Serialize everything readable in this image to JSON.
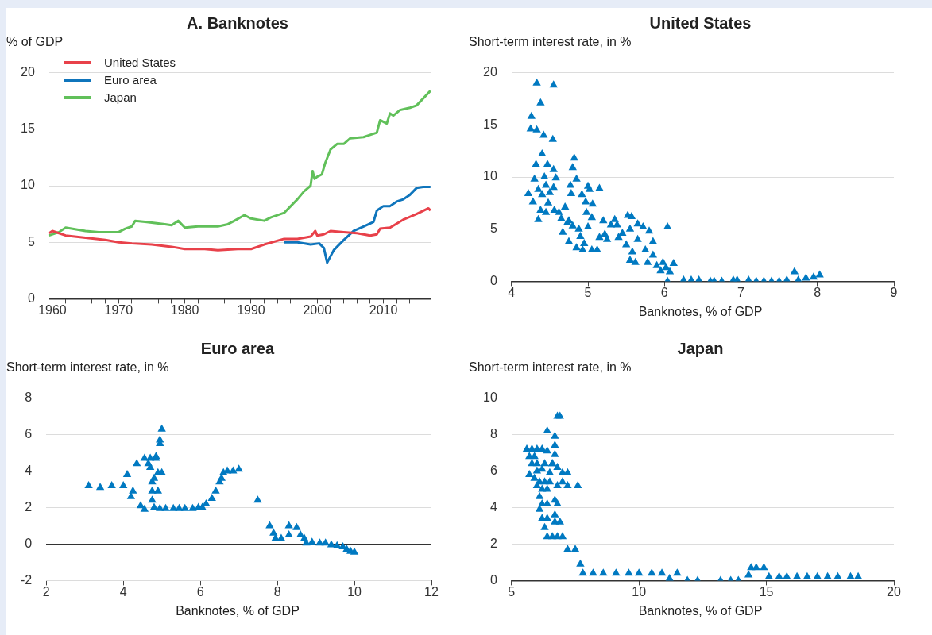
{
  "chart_data": [
    {
      "type": "line",
      "title": "A. Banknotes",
      "ylabel": "% of GDP",
      "xlim": [
        1959.5,
        2017.25
      ],
      "ylim": [
        0,
        20
      ],
      "yticks": [
        0,
        5,
        10,
        15,
        20
      ],
      "xticks": [
        1960,
        {
          "value": 1962,
          "label": null
        },
        {
          "value": 1964,
          "label": null
        },
        {
          "value": 1966,
          "label": null
        },
        {
          "value": 1968,
          "label": null
        },
        1970,
        {
          "value": 1972,
          "label": null
        },
        {
          "value": 1974,
          "label": null
        },
        {
          "value": 1976,
          "label": null
        },
        {
          "value": 1978,
          "label": null
        },
        1980,
        {
          "value": 1982,
          "label": null
        },
        {
          "value": 1984,
          "label": null
        },
        {
          "value": 1986,
          "label": null
        },
        {
          "value": 1988,
          "label": null
        },
        1990,
        {
          "value": 1992,
          "label": null
        },
        {
          "value": 1994,
          "label": null
        },
        {
          "value": 1996,
          "label": null
        },
        {
          "value": 1998,
          "label": null
        },
        2000,
        {
          "value": 2002,
          "label": null
        },
        {
          "value": 2004,
          "label": null
        },
        {
          "value": 2006,
          "label": null
        },
        {
          "value": 2008,
          "label": null
        },
        2010,
        {
          "value": 2012,
          "label": null
        },
        {
          "value": 2014,
          "label": null
        },
        {
          "value": 2016,
          "label": null
        }
      ],
      "grid": "y",
      "legend": "top left",
      "line_style": "solid",
      "marker": "none",
      "series": [
        {
          "name": "United States",
          "color": "#e8414a",
          "x": [
            1959.5,
            1960,
            1962,
            1965,
            1968,
            1970,
            1972,
            1975,
            1978,
            1980,
            1983,
            1985,
            1988,
            1990,
            1992,
            1995,
            1997,
            1999,
            1999.7,
            2000,
            2001,
            2002,
            2004,
            2006,
            2008,
            2009,
            2009.5,
            2011,
            2013,
            2015,
            2016.8,
            2017.1
          ],
          "values": [
            5.8,
            6.0,
            5.6,
            5.4,
            5.2,
            5.0,
            4.9,
            4.8,
            4.6,
            4.4,
            4.4,
            4.3,
            4.4,
            4.4,
            4.8,
            5.3,
            5.3,
            5.5,
            6.0,
            5.6,
            5.7,
            6.0,
            5.9,
            5.8,
            5.6,
            5.7,
            6.2,
            6.3,
            7.0,
            7.5,
            8.0,
            7.8
          ]
        },
        {
          "name": "Euro area",
          "color": "#0f75bc",
          "x": [
            1995,
            1997,
            1999,
            2000.3,
            2001,
            2001.5,
            2002.5,
            2004,
            2005.5,
            2007,
            2008.5,
            2009,
            2010,
            2011,
            2012,
            2013,
            2014,
            2015,
            2016,
            2017.1
          ],
          "values": [
            5.0,
            5.0,
            4.8,
            4.9,
            4.5,
            3.2,
            4.3,
            5.2,
            6.0,
            6.4,
            6.8,
            7.8,
            8.2,
            8.2,
            8.6,
            8.8,
            9.2,
            9.8,
            9.9,
            9.9
          ]
        },
        {
          "name": "Japan",
          "color": "#61c05a",
          "x": [
            1959.5,
            1961,
            1962,
            1965,
            1967,
            1970,
            1971,
            1972,
            1972.5,
            1974,
            1977,
            1978,
            1979,
            1980,
            1982,
            1985,
            1986.5,
            1987.5,
            1989,
            1990,
            1992,
            1993,
            1995,
            1996,
            1997,
            1998,
            1999,
            1999.3,
            1999.6,
            2000,
            2000.7,
            2001.2,
            2002,
            2003,
            2004,
            2005,
            2007,
            2008,
            2009,
            2009.5,
            2010.5,
            2011,
            2011.5,
            2012.5,
            2014,
            2015,
            2017.1
          ],
          "values": [
            5.6,
            5.9,
            6.3,
            6.0,
            5.9,
            5.9,
            6.2,
            6.4,
            6.9,
            6.8,
            6.6,
            6.5,
            6.9,
            6.3,
            6.4,
            6.4,
            6.6,
            6.9,
            7.4,
            7.1,
            6.9,
            7.2,
            7.6,
            8.2,
            8.8,
            9.5,
            10.0,
            11.3,
            10.6,
            10.8,
            11.0,
            12.0,
            13.2,
            13.7,
            13.7,
            14.2,
            14.3,
            14.5,
            14.7,
            15.8,
            15.5,
            16.4,
            16.2,
            16.7,
            16.9,
            17.1,
            18.4
          ]
        }
      ]
    },
    {
      "type": "scatter",
      "title": "United States",
      "ylabel": "Short-term interest rate, in %",
      "xlabel": "Banknotes, % of GDP",
      "xlim": [
        4,
        9
      ],
      "xticks": [
        4,
        5,
        6,
        7,
        8,
        9
      ],
      "ylim": [
        0,
        20
      ],
      "yticks": [
        0,
        5,
        10,
        15,
        20
      ],
      "grid": "y",
      "marker": "triangle",
      "series": [
        {
          "color": "#0079c1",
          "x": [
            4.33,
            4.55,
            4.38,
            4.26,
            4.25,
            4.33,
            4.42,
            4.54,
            4.4,
            4.32,
            4.47,
            4.55,
            4.3,
            4.43,
            4.58,
            4.22,
            4.28,
            4.35,
            4.4,
            4.45,
            4.5,
            4.55,
            4.48,
            4.38,
            4.45,
            4.35,
            4.56,
            4.62,
            4.65,
            4.7,
            4.73,
            4.67,
            4.75,
            4.82,
            4.8,
            4.77,
            4.78,
            4.85,
            4.75,
            4.8,
            4.88,
            4.9,
            4.85,
            4.93,
            4.95,
            4.92,
            4.97,
            5.0,
            5.02,
            5.06,
            5.15,
            4.98,
            5.05,
            5.0,
            5.05,
            5.12,
            5.15,
            5.2,
            5.22,
            5.25,
            5.3,
            5.35,
            5.38,
            5.4,
            5.45,
            5.5,
            5.52,
            5.57,
            5.55,
            5.58,
            5.55,
            5.62,
            5.65,
            5.65,
            5.72,
            5.75,
            5.78,
            5.8,
            5.85,
            5.85,
            5.9,
            5.95,
            5.98,
            6.04,
            6.04,
            6.02,
            6.07,
            6.12,
            6.25,
            6.35,
            6.45,
            6.6,
            6.65,
            6.75,
            6.9,
            6.95,
            7.1,
            7.2,
            7.3,
            7.4,
            7.5,
            7.6,
            7.7,
            7.75,
            7.85,
            7.95,
            8.03
          ],
          "values": [
            19.0,
            18.8,
            17.1,
            15.8,
            14.6,
            14.5,
            14.0,
            13.6,
            12.2,
            11.2,
            11.2,
            10.7,
            9.8,
            10.0,
            9.9,
            8.4,
            7.6,
            8.8,
            8.3,
            9.2,
            8.5,
            9.0,
            7.5,
            6.8,
            6.6,
            5.9,
            6.8,
            6.6,
            6.0,
            7.1,
            5.6,
            4.7,
            3.8,
            11.8,
            10.9,
            9.2,
            8.4,
            9.8,
            5.8,
            5.3,
            5.0,
            4.3,
            3.2,
            3.0,
            3.6,
            8.3,
            7.6,
            9.1,
            8.8,
            7.4,
            8.9,
            6.6,
            6.1,
            5.2,
            3.0,
            3.0,
            4.2,
            5.8,
            4.5,
            4.0,
            5.4,
            5.9,
            5.4,
            4.2,
            4.6,
            3.5,
            6.3,
            6.2,
            5.0,
            2.8,
            2.0,
            1.8,
            4.0,
            5.5,
            5.2,
            3.0,
            1.8,
            4.8,
            3.8,
            2.5,
            1.5,
            1.0,
            1.8,
            5.2,
            0.0,
            1.3,
            0.9,
            1.7,
            0.1,
            0.1,
            0.1,
            0.0,
            0.0,
            0.0,
            0.1,
            0.1,
            0.1,
            0.0,
            0.0,
            0.0,
            0.0,
            0.1,
            0.9,
            0.1,
            0.3,
            0.4,
            0.6
          ]
        }
      ]
    },
    {
      "type": "scatter",
      "title": "Euro area",
      "ylabel": "Short-term interest rate, in %",
      "xlabel": "Banknotes, % of GDP",
      "xlim": [
        2,
        12
      ],
      "xticks": [
        2,
        4,
        6,
        8,
        10,
        12
      ],
      "ylim": [
        -2,
        8
      ],
      "yticks": [
        -2,
        0,
        2,
        4,
        6,
        8
      ],
      "grid": "y",
      "marker": "triangle",
      "series": [
        {
          "color": "#0079c1",
          "x": [
            3.1,
            3.4,
            3.7,
            4.0,
            4.1,
            4.25,
            4.2,
            4.45,
            4.55,
            4.35,
            4.55,
            4.7,
            4.65,
            4.7,
            4.85,
            4.85,
            5.0,
            4.95,
            4.95,
            4.8,
            4.9,
            5.0,
            4.75,
            4.75,
            4.9,
            4.75,
            4.8,
            4.95,
            5.1,
            5.3,
            5.45,
            5.6,
            5.8,
            5.95,
            6.05,
            6.15,
            6.3,
            6.4,
            6.5,
            6.55,
            6.6,
            6.7,
            6.85,
            7.0,
            7.49,
            7.8,
            7.9,
            7.95,
            8.1,
            8.3,
            8.3,
            8.5,
            8.6,
            8.7,
            8.75,
            8.9,
            9.1,
            9.25,
            9.4,
            9.55,
            9.7,
            9.8,
            9.9,
            10.0
          ],
          "values": [
            3.2,
            3.1,
            3.2,
            3.2,
            3.8,
            2.9,
            2.6,
            2.1,
            1.9,
            4.4,
            4.7,
            4.7,
            4.4,
            4.2,
            4.7,
            4.8,
            6.3,
            5.7,
            5.5,
            3.6,
            3.9,
            3.9,
            3.4,
            2.9,
            2.9,
            2.4,
            2.0,
            1.95,
            1.95,
            1.95,
            1.95,
            1.95,
            1.95,
            2.0,
            2.0,
            2.2,
            2.5,
            2.9,
            3.4,
            3.6,
            3.9,
            4.0,
            4.0,
            4.1,
            2.4,
            1.0,
            0.6,
            0.3,
            0.3,
            0.5,
            1.0,
            0.9,
            0.5,
            0.3,
            0.05,
            0.1,
            0.05,
            0.05,
            -0.05,
            -0.1,
            -0.15,
            -0.3,
            -0.4,
            -0.45
          ]
        }
      ]
    },
    {
      "type": "scatter",
      "title": "Japan",
      "ylabel": "Short-term interest rate, in %",
      "xlabel": "Banknotes, % of GDP",
      "xlim": [
        5,
        20
      ],
      "xticks": [
        5,
        10,
        15,
        20
      ],
      "ylim": [
        0,
        10
      ],
      "yticks": [
        0,
        2,
        4,
        6,
        8,
        10
      ],
      "grid": "y",
      "marker": "triangle",
      "series": [
        {
          "color": "#0079c1",
          "x": [
            5.6,
            5.8,
            6.0,
            6.2,
            6.4,
            5.7,
            5.9,
            5.8,
            6.0,
            6.3,
            6.6,
            6.0,
            6.2,
            6.5,
            5.7,
            5.9,
            6.1,
            6.3,
            6.5,
            6.2,
            6.4,
            6.0,
            6.1,
            6.2,
            6.4,
            6.7,
            6.8,
            6.1,
            6.2,
            6.4,
            6.3,
            6.7,
            6.7,
            6.9,
            6.4,
            6.6,
            6.8,
            7.0,
            6.8,
            6.9,
            6.4,
            6.7,
            6.7,
            6.7,
            6.6,
            6.8,
            7.0,
            7.2,
            7.0,
            6.8,
            7.2,
            7.6,
            7.2,
            7.5,
            7.7,
            7.8,
            8.2,
            8.6,
            9.1,
            9.6,
            10.0,
            10.5,
            10.9,
            11.2,
            11.5,
            11.9,
            12.3,
            13.2,
            13.6,
            13.9,
            14.3,
            14.4,
            14.6,
            14.9,
            15.1,
            15.5,
            15.8,
            16.2,
            16.6,
            17.0,
            17.4,
            17.8,
            18.3,
            18.6
          ],
          "values": [
            7.2,
            7.2,
            7.2,
            7.2,
            7.1,
            6.8,
            6.8,
            6.4,
            6.4,
            6.4,
            6.4,
            6.0,
            6.1,
            5.9,
            5.8,
            5.6,
            5.4,
            5.4,
            5.4,
            5.0,
            5.0,
            5.2,
            4.6,
            4.2,
            4.2,
            4.4,
            4.2,
            3.9,
            3.4,
            3.4,
            2.9,
            3.6,
            3.2,
            3.2,
            2.4,
            2.4,
            2.4,
            2.4,
            9.0,
            9.0,
            8.2,
            7.9,
            7.4,
            6.9,
            6.4,
            6.2,
            5.9,
            5.9,
            5.4,
            5.2,
            5.2,
            5.2,
            1.7,
            1.7,
            0.9,
            0.4,
            0.4,
            0.4,
            0.4,
            0.4,
            0.4,
            0.4,
            0.4,
            0.1,
            0.4,
            0.0,
            0.0,
            0.0,
            0.0,
            0.0,
            0.3,
            0.7,
            0.7,
            0.7,
            0.2,
            0.2,
            0.2,
            0.2,
            0.2,
            0.2,
            0.2,
            0.2,
            0.2,
            0.2
          ]
        }
      ]
    }
  ]
}
